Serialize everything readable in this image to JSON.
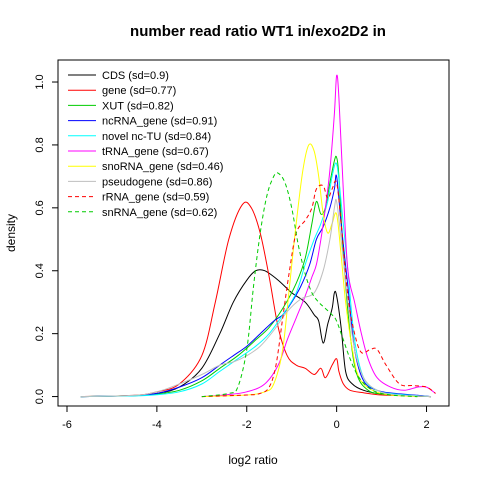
{
  "chart_data": {
    "type": "line",
    "title": "number read ratio WT1 in/exo2D2 in",
    "xlabel": "log2 ratio",
    "ylabel": "density",
    "xlim": [
      -6.2,
      2.5
    ],
    "ylim": [
      -0.03,
      1.07
    ],
    "xticks": [
      -6,
      -4,
      -2,
      0,
      2
    ],
    "xtick_labels": [
      "-6",
      "-4",
      "-2",
      "0",
      "2"
    ],
    "yticks": [
      0.0,
      0.2,
      0.4,
      0.6,
      0.8,
      1.0
    ],
    "ytick_labels": [
      "0.0",
      "0.2",
      "0.4",
      "0.6",
      "0.8",
      "1.0"
    ],
    "grid": false,
    "legend_position": "top-left",
    "series": [
      {
        "name": "CDS (sd=0.9)",
        "color": "#000000",
        "dash": "solid",
        "points": [
          [
            -5.7,
            0
          ],
          [
            -4.5,
            0.003
          ],
          [
            -4,
            0.01
          ],
          [
            -3.5,
            0.03
          ],
          [
            -3,
            0.09
          ],
          [
            -2.6,
            0.2
          ],
          [
            -2.3,
            0.3
          ],
          [
            -2.0,
            0.37
          ],
          [
            -1.8,
            0.4
          ],
          [
            -1.6,
            0.4
          ],
          [
            -1.3,
            0.37
          ],
          [
            -1.0,
            0.33
          ],
          [
            -0.7,
            0.3
          ],
          [
            -0.5,
            0.26
          ],
          [
            -0.4,
            0.24
          ],
          [
            -0.3,
            0.17
          ],
          [
            -0.2,
            0.23
          ],
          [
            -0.1,
            0.28
          ],
          [
            -0.05,
            0.33
          ],
          [
            0,
            0.32
          ],
          [
            0.1,
            0.22
          ],
          [
            0.2,
            0.08
          ],
          [
            0.35,
            0.04
          ],
          [
            0.6,
            0.02
          ],
          [
            1.0,
            0.008
          ],
          [
            1.5,
            0.004
          ],
          [
            2.1,
            0
          ]
        ]
      },
      {
        "name": "gene (sd=0.77)",
        "color": "#ff0000",
        "dash": "solid",
        "points": [
          [
            -5.7,
            0
          ],
          [
            -4.5,
            0.004
          ],
          [
            -4,
            0.015
          ],
          [
            -3.5,
            0.04
          ],
          [
            -3.0,
            0.13
          ],
          [
            -2.7,
            0.3
          ],
          [
            -2.4,
            0.5
          ],
          [
            -2.1,
            0.61
          ],
          [
            -1.9,
            0.6
          ],
          [
            -1.7,
            0.52
          ],
          [
            -1.5,
            0.38
          ],
          [
            -1.3,
            0.22
          ],
          [
            -1.1,
            0.13
          ],
          [
            -0.9,
            0.1
          ],
          [
            -0.7,
            0.09
          ],
          [
            -0.5,
            0.07
          ],
          [
            -0.35,
            0.09
          ],
          [
            -0.25,
            0.06
          ],
          [
            -0.1,
            0.1
          ],
          [
            0,
            0.12
          ],
          [
            0.05,
            0.08
          ],
          [
            0.15,
            0.04
          ],
          [
            0.3,
            0.02
          ],
          [
            0.6,
            0.012
          ],
          [
            1.0,
            0.005
          ],
          [
            1.5,
            0.003
          ],
          [
            2.1,
            0
          ]
        ]
      },
      {
        "name": "XUT (sd=0.82)",
        "color": "#00cc00",
        "dash": "solid",
        "points": [
          [
            -5.7,
            0
          ],
          [
            -4.5,
            0.003
          ],
          [
            -4,
            0.008
          ],
          [
            -3.5,
            0.02
          ],
          [
            -3,
            0.05
          ],
          [
            -2.6,
            0.09
          ],
          [
            -2.2,
            0.13
          ],
          [
            -1.8,
            0.18
          ],
          [
            -1.5,
            0.22
          ],
          [
            -1.2,
            0.28
          ],
          [
            -0.9,
            0.36
          ],
          [
            -0.7,
            0.44
          ],
          [
            -0.55,
            0.55
          ],
          [
            -0.45,
            0.62
          ],
          [
            -0.35,
            0.58
          ],
          [
            -0.25,
            0.6
          ],
          [
            -0.15,
            0.68
          ],
          [
            -0.05,
            0.75
          ],
          [
            0,
            0.76
          ],
          [
            0.05,
            0.7
          ],
          [
            0.15,
            0.45
          ],
          [
            0.3,
            0.2
          ],
          [
            0.45,
            0.07
          ],
          [
            0.7,
            0.02
          ],
          [
            1.0,
            0.008
          ],
          [
            1.5,
            0.003
          ],
          [
            2.1,
            0
          ]
        ]
      },
      {
        "name": "ncRNA_gene (sd=0.91)",
        "color": "#0000ff",
        "dash": "solid",
        "points": [
          [
            -5.7,
            0
          ],
          [
            -4.5,
            0.003
          ],
          [
            -4,
            0.01
          ],
          [
            -3.5,
            0.03
          ],
          [
            -3,
            0.06
          ],
          [
            -2.6,
            0.1
          ],
          [
            -2.3,
            0.13
          ],
          [
            -2.0,
            0.16
          ],
          [
            -1.7,
            0.2
          ],
          [
            -1.4,
            0.24
          ],
          [
            -1.2,
            0.26
          ],
          [
            -1.0,
            0.3
          ],
          [
            -0.8,
            0.35
          ],
          [
            -0.6,
            0.42
          ],
          [
            -0.45,
            0.5
          ],
          [
            -0.3,
            0.54
          ],
          [
            -0.15,
            0.6
          ],
          [
            -0.05,
            0.66
          ],
          [
            0,
            0.7
          ],
          [
            0.1,
            0.55
          ],
          [
            0.25,
            0.35
          ],
          [
            0.4,
            0.15
          ],
          [
            0.6,
            0.05
          ],
          [
            0.9,
            0.02
          ],
          [
            1.3,
            0.01
          ],
          [
            1.8,
            0.004
          ],
          [
            2.1,
            0
          ]
        ]
      },
      {
        "name": "novel nc-TU (sd=0.84)",
        "color": "#00ffff",
        "dash": "solid",
        "points": [
          [
            -5.7,
            0
          ],
          [
            -4.5,
            0.002
          ],
          [
            -4,
            0.006
          ],
          [
            -3.5,
            0.015
          ],
          [
            -3,
            0.04
          ],
          [
            -2.6,
            0.08
          ],
          [
            -2.2,
            0.12
          ],
          [
            -1.8,
            0.16
          ],
          [
            -1.5,
            0.2
          ],
          [
            -1.2,
            0.26
          ],
          [
            -0.9,
            0.33
          ],
          [
            -0.7,
            0.42
          ],
          [
            -0.5,
            0.5
          ],
          [
            -0.35,
            0.55
          ],
          [
            -0.2,
            0.62
          ],
          [
            -0.1,
            0.7
          ],
          [
            0,
            0.74
          ],
          [
            0.1,
            0.62
          ],
          [
            0.25,
            0.4
          ],
          [
            0.4,
            0.18
          ],
          [
            0.6,
            0.06
          ],
          [
            0.9,
            0.02
          ],
          [
            1.3,
            0.008
          ],
          [
            2.1,
            0
          ]
        ]
      },
      {
        "name": "tRNA_gene (sd=0.67)",
        "color": "#ff00ff",
        "dash": "solid",
        "points": [
          [
            -3.0,
            0
          ],
          [
            -2.5,
            0.005
          ],
          [
            -2.0,
            0.015
          ],
          [
            -1.6,
            0.04
          ],
          [
            -1.3,
            0.1
          ],
          [
            -1.1,
            0.18
          ],
          [
            -0.9,
            0.25
          ],
          [
            -0.7,
            0.32
          ],
          [
            -0.55,
            0.38
          ],
          [
            -0.45,
            0.42
          ],
          [
            -0.35,
            0.5
          ],
          [
            -0.25,
            0.6
          ],
          [
            -0.15,
            0.72
          ],
          [
            -0.05,
            0.9
          ],
          [
            0,
            1.02
          ],
          [
            0.05,
            0.95
          ],
          [
            0.15,
            0.65
          ],
          [
            0.25,
            0.4
          ],
          [
            0.4,
            0.3
          ],
          [
            0.55,
            0.2
          ],
          [
            0.7,
            0.12
          ],
          [
            0.9,
            0.06
          ],
          [
            1.2,
            0.03
          ],
          [
            1.5,
            0.02
          ],
          [
            1.8,
            0.03
          ],
          [
            2.0,
            0.03
          ],
          [
            2.2,
            0.01
          ]
        ]
      },
      {
        "name": "snoRNA_gene (sd=0.46)",
        "color": "#ffff00",
        "dash": "solid",
        "points": [
          [
            -3.0,
            0
          ],
          [
            -2.0,
            0.005
          ],
          [
            -1.6,
            0.015
          ],
          [
            -1.4,
            0.04
          ],
          [
            -1.2,
            0.15
          ],
          [
            -1.05,
            0.35
          ],
          [
            -0.9,
            0.55
          ],
          [
            -0.75,
            0.72
          ],
          [
            -0.62,
            0.8
          ],
          [
            -0.5,
            0.78
          ],
          [
            -0.4,
            0.7
          ],
          [
            -0.3,
            0.58
          ],
          [
            -0.2,
            0.52
          ],
          [
            -0.1,
            0.55
          ],
          [
            0,
            0.58
          ],
          [
            0.1,
            0.45
          ],
          [
            0.2,
            0.3
          ],
          [
            0.35,
            0.15
          ],
          [
            0.5,
            0.06
          ],
          [
            0.8,
            0.02
          ],
          [
            1.2,
            0.005
          ],
          [
            1.8,
            0
          ]
        ]
      },
      {
        "name": "pseudogene (sd=0.86)",
        "color": "#bebebe",
        "dash": "solid",
        "points": [
          [
            -5.7,
            0
          ],
          [
            -4.5,
            0.004
          ],
          [
            -4,
            0.015
          ],
          [
            -3.5,
            0.04
          ],
          [
            -3.0,
            0.07
          ],
          [
            -2.6,
            0.1
          ],
          [
            -2.3,
            0.11
          ],
          [
            -2.0,
            0.13
          ],
          [
            -1.7,
            0.16
          ],
          [
            -1.4,
            0.21
          ],
          [
            -1.1,
            0.27
          ],
          [
            -0.8,
            0.31
          ],
          [
            -0.5,
            0.33
          ],
          [
            -0.3,
            0.4
          ],
          [
            -0.15,
            0.5
          ],
          [
            -0.05,
            0.6
          ],
          [
            0,
            0.62
          ],
          [
            0.1,
            0.5
          ],
          [
            0.25,
            0.3
          ],
          [
            0.4,
            0.15
          ],
          [
            0.6,
            0.06
          ],
          [
            0.9,
            0.02
          ],
          [
            1.3,
            0.006
          ],
          [
            2.1,
            0
          ]
        ]
      },
      {
        "name": "rRNA_gene (sd=0.59)",
        "color": "#ff0000",
        "dash": "dashed",
        "points": [
          [
            -3.0,
            0
          ],
          [
            -2.0,
            0.005
          ],
          [
            -1.7,
            0.01
          ],
          [
            -1.5,
            0.03
          ],
          [
            -1.35,
            0.1
          ],
          [
            -1.2,
            0.25
          ],
          [
            -1.05,
            0.4
          ],
          [
            -0.9,
            0.52
          ],
          [
            -0.7,
            0.56
          ],
          [
            -0.55,
            0.6
          ],
          [
            -0.45,
            0.66
          ],
          [
            -0.3,
            0.67
          ],
          [
            -0.2,
            0.63
          ],
          [
            -0.1,
            0.66
          ],
          [
            0,
            0.68
          ],
          [
            0.1,
            0.55
          ],
          [
            0.25,
            0.32
          ],
          [
            0.4,
            0.2
          ],
          [
            0.55,
            0.14
          ],
          [
            0.75,
            0.15
          ],
          [
            0.9,
            0.15
          ],
          [
            1.1,
            0.1
          ],
          [
            1.4,
            0.04
          ],
          [
            1.7,
            0.035
          ],
          [
            2.0,
            0.03
          ],
          [
            2.2,
            0.01
          ]
        ]
      },
      {
        "name": "snRNA_gene (sd=0.62)",
        "color": "#00cc00",
        "dash": "dashed",
        "points": [
          [
            -3.0,
            0
          ],
          [
            -2.4,
            0.01
          ],
          [
            -2.2,
            0.03
          ],
          [
            -2.0,
            0.15
          ],
          [
            -1.85,
            0.35
          ],
          [
            -1.7,
            0.52
          ],
          [
            -1.55,
            0.64
          ],
          [
            -1.4,
            0.7
          ],
          [
            -1.3,
            0.71
          ],
          [
            -1.15,
            0.68
          ],
          [
            -1.0,
            0.6
          ],
          [
            -0.85,
            0.48
          ],
          [
            -0.7,
            0.39
          ],
          [
            -0.55,
            0.33
          ],
          [
            -0.4,
            0.3
          ],
          [
            -0.25,
            0.28
          ],
          [
            -0.1,
            0.26
          ],
          [
            0,
            0.24
          ],
          [
            0.15,
            0.18
          ],
          [
            0.3,
            0.12
          ],
          [
            0.5,
            0.06
          ],
          [
            0.8,
            0.02
          ],
          [
            1.2,
            0.005
          ],
          [
            1.8,
            0
          ]
        ]
      }
    ]
  }
}
